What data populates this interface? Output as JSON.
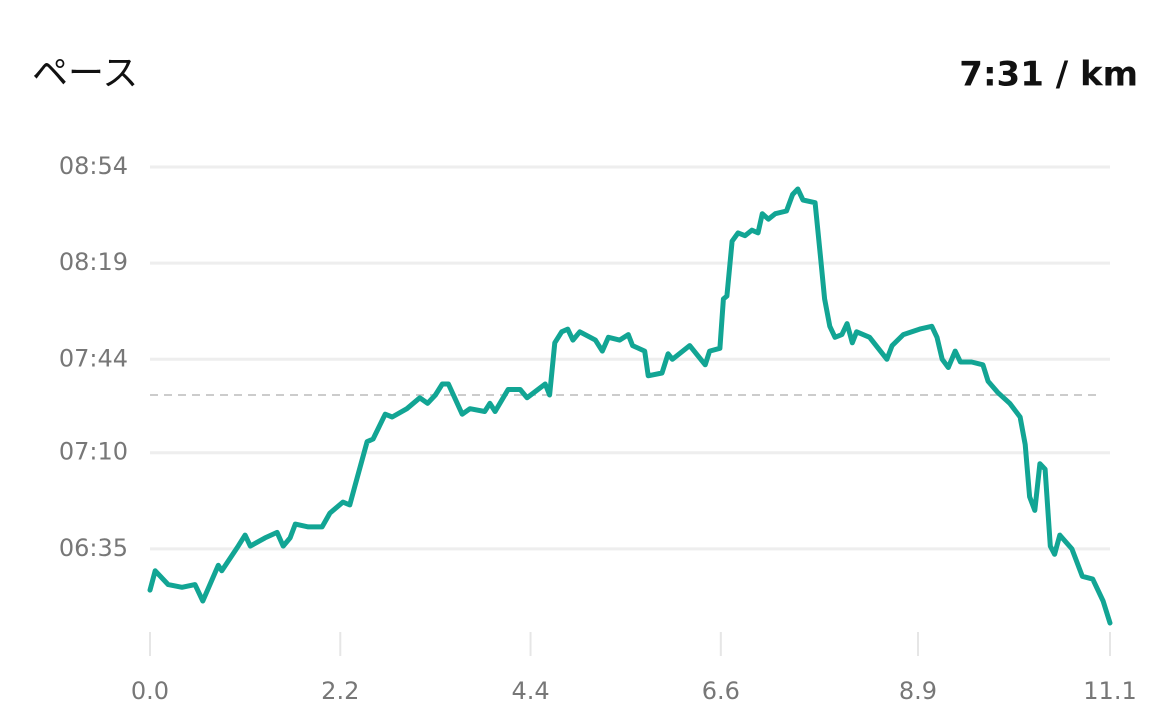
{
  "chart_data": {
    "type": "line",
    "title": "ペース",
    "summary": "7:31 / km",
    "color": "#12a594",
    "x": [
      0.0,
      0.06,
      0.21,
      0.37,
      0.52,
      0.61,
      0.79,
      0.83,
      1.02,
      1.1,
      1.16,
      1.33,
      1.47,
      1.54,
      1.62,
      1.68,
      1.83,
      1.99,
      2.08,
      2.23,
      2.31,
      2.37,
      2.51,
      2.58,
      2.72,
      2.8,
      2.97,
      3.12,
      3.21,
      3.3,
      3.38,
      3.45,
      3.61,
      3.7,
      3.87,
      3.93,
      3.99,
      4.14,
      4.28,
      4.36,
      4.57,
      4.62,
      4.68,
      4.76,
      4.83,
      4.89,
      4.97,
      5.15,
      5.23,
      5.3,
      5.43,
      5.53,
      5.58,
      5.72,
      5.76,
      5.92,
      5.99,
      6.04,
      6.24,
      6.42,
      6.47,
      6.59,
      6.63,
      6.67,
      6.73,
      6.8,
      6.88,
      6.96,
      7.03,
      7.08,
      7.15,
      7.23,
      7.36,
      7.43,
      7.49,
      7.55,
      7.69,
      7.75,
      7.8,
      7.86,
      7.92,
      8.0,
      8.06,
      8.12,
      8.17,
      8.32,
      8.52,
      8.58,
      8.71,
      8.9,
      9.04,
      9.1,
      9.16,
      9.23,
      9.31,
      9.37,
      9.5,
      9.63,
      9.69,
      9.8,
      9.94,
      10.06,
      10.12,
      10.17,
      10.23,
      10.29,
      10.35,
      10.41,
      10.46,
      10.52,
      10.66,
      10.78,
      10.9,
      11.02,
      11.1
    ],
    "values": [
      380,
      387,
      382,
      381,
      382,
      376,
      389,
      387,
      396,
      400,
      396,
      399,
      401,
      396,
      399,
      404,
      403,
      403,
      408,
      412,
      411,
      418,
      434,
      435,
      444,
      443,
      446,
      450,
      448,
      451,
      455,
      455,
      444,
      446,
      445,
      448,
      445,
      453,
      453,
      450,
      455,
      451,
      470,
      474,
      475,
      471,
      474,
      471,
      467,
      472,
      471,
      473,
      469,
      467,
      458,
      459,
      466,
      464,
      469,
      462,
      467,
      468,
      486,
      487,
      507,
      510,
      509,
      511,
      510,
      517,
      515,
      517,
      518,
      524,
      526,
      522,
      521,
      502,
      486,
      476,
      472,
      473,
      477,
      470,
      474,
      472,
      464,
      469,
      473,
      475,
      476,
      472,
      464,
      461,
      467,
      463,
      463,
      462,
      456,
      452,
      448,
      443,
      433,
      414,
      409,
      426,
      424,
      396,
      393,
      400,
      395,
      385,
      384,
      376,
      368
    ],
    "reference_line": 451,
    "xlim": [
      0,
      11.1
    ],
    "ylim": [
      360,
      534
    ],
    "xticks": [
      {
        "value": 0,
        "label": "0.0"
      },
      2.2,
      4.4,
      6.6,
      {
        "value": 8.88,
        "label": "8.9"
      },
      11.1
    ],
    "yticks": [
      {
        "value": 534,
        "label": "08:54"
      },
      {
        "value": 499,
        "label": "08:19"
      },
      {
        "value": 464,
        "label": "07:44"
      },
      {
        "value": 430,
        "label": "07:10"
      },
      {
        "value": 395,
        "label": "06:35"
      }
    ],
    "grid": true
  }
}
